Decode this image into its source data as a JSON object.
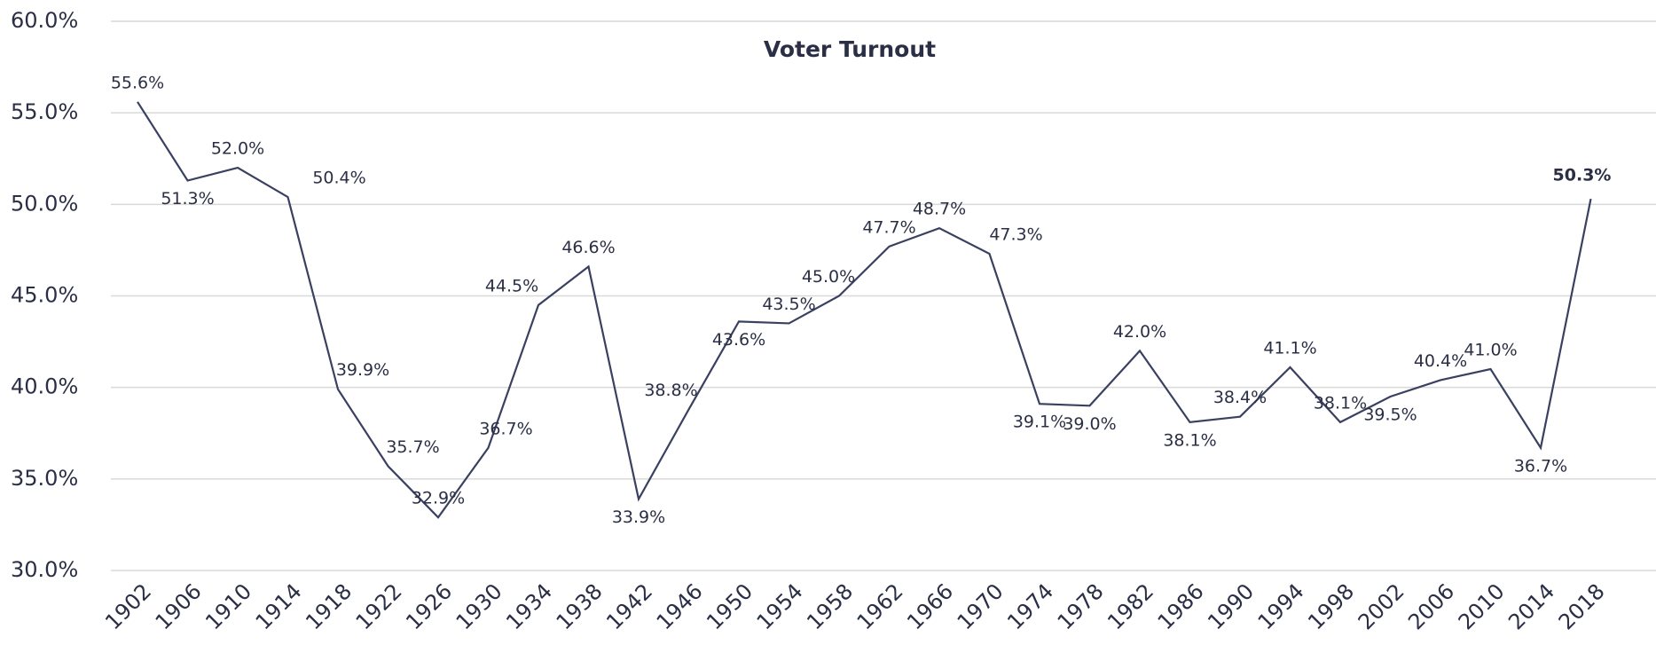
{
  "chart_data": {
    "type": "line",
    "title": "Voter Turnout",
    "categories": [
      "1902",
      "1906",
      "1910",
      "1914",
      "1918",
      "1922",
      "1926",
      "1930",
      "1934",
      "1938",
      "1942",
      "1946",
      "1950",
      "1954",
      "1958",
      "1962",
      "1966",
      "1970",
      "1974",
      "1978",
      "1982",
      "1986",
      "1990",
      "1994",
      "1998",
      "2002",
      "2006",
      "2010",
      "2014",
      "2018"
    ],
    "values": [
      55.6,
      51.3,
      52.0,
      50.4,
      39.9,
      35.7,
      32.9,
      36.7,
      44.5,
      46.6,
      33.9,
      38.8,
      43.6,
      43.5,
      45.0,
      47.7,
      48.7,
      47.3,
      39.1,
      39.0,
      42.0,
      38.1,
      38.4,
      41.1,
      38.1,
      39.5,
      40.4,
      41.0,
      36.7,
      50.3
    ],
    "value_labels": [
      "55.6%",
      "51.3%",
      "52.0%",
      "50.4%",
      "39.9%",
      "35.7%",
      "32.9%",
      "36.7%",
      "44.5%",
      "46.6%",
      "33.9%",
      "38.8%",
      "43.6%",
      "43.5%",
      "45.0%",
      "47.7%",
      "48.7%",
      "47.3%",
      "39.1%",
      "39.0%",
      "42.0%",
      "38.1%",
      "38.4%",
      "41.1%",
      "38.1%",
      "39.5%",
      "40.4%",
      "41.0%",
      "36.7%",
      "50.3%"
    ],
    "color": "#3a4060",
    "ylim": [
      30,
      60
    ],
    "yticks": [
      {
        "value": 30,
        "label": "30.0%"
      },
      {
        "value": 35,
        "label": "35.0%"
      },
      {
        "value": 40,
        "label": "40.0%"
      },
      {
        "value": 45,
        "label": "45.0%"
      },
      {
        "value": 50,
        "label": "50.0%"
      },
      {
        "value": 55,
        "label": "55.0%"
      },
      {
        "value": 60,
        "label": "60.0%"
      }
    ],
    "grid": true
  }
}
